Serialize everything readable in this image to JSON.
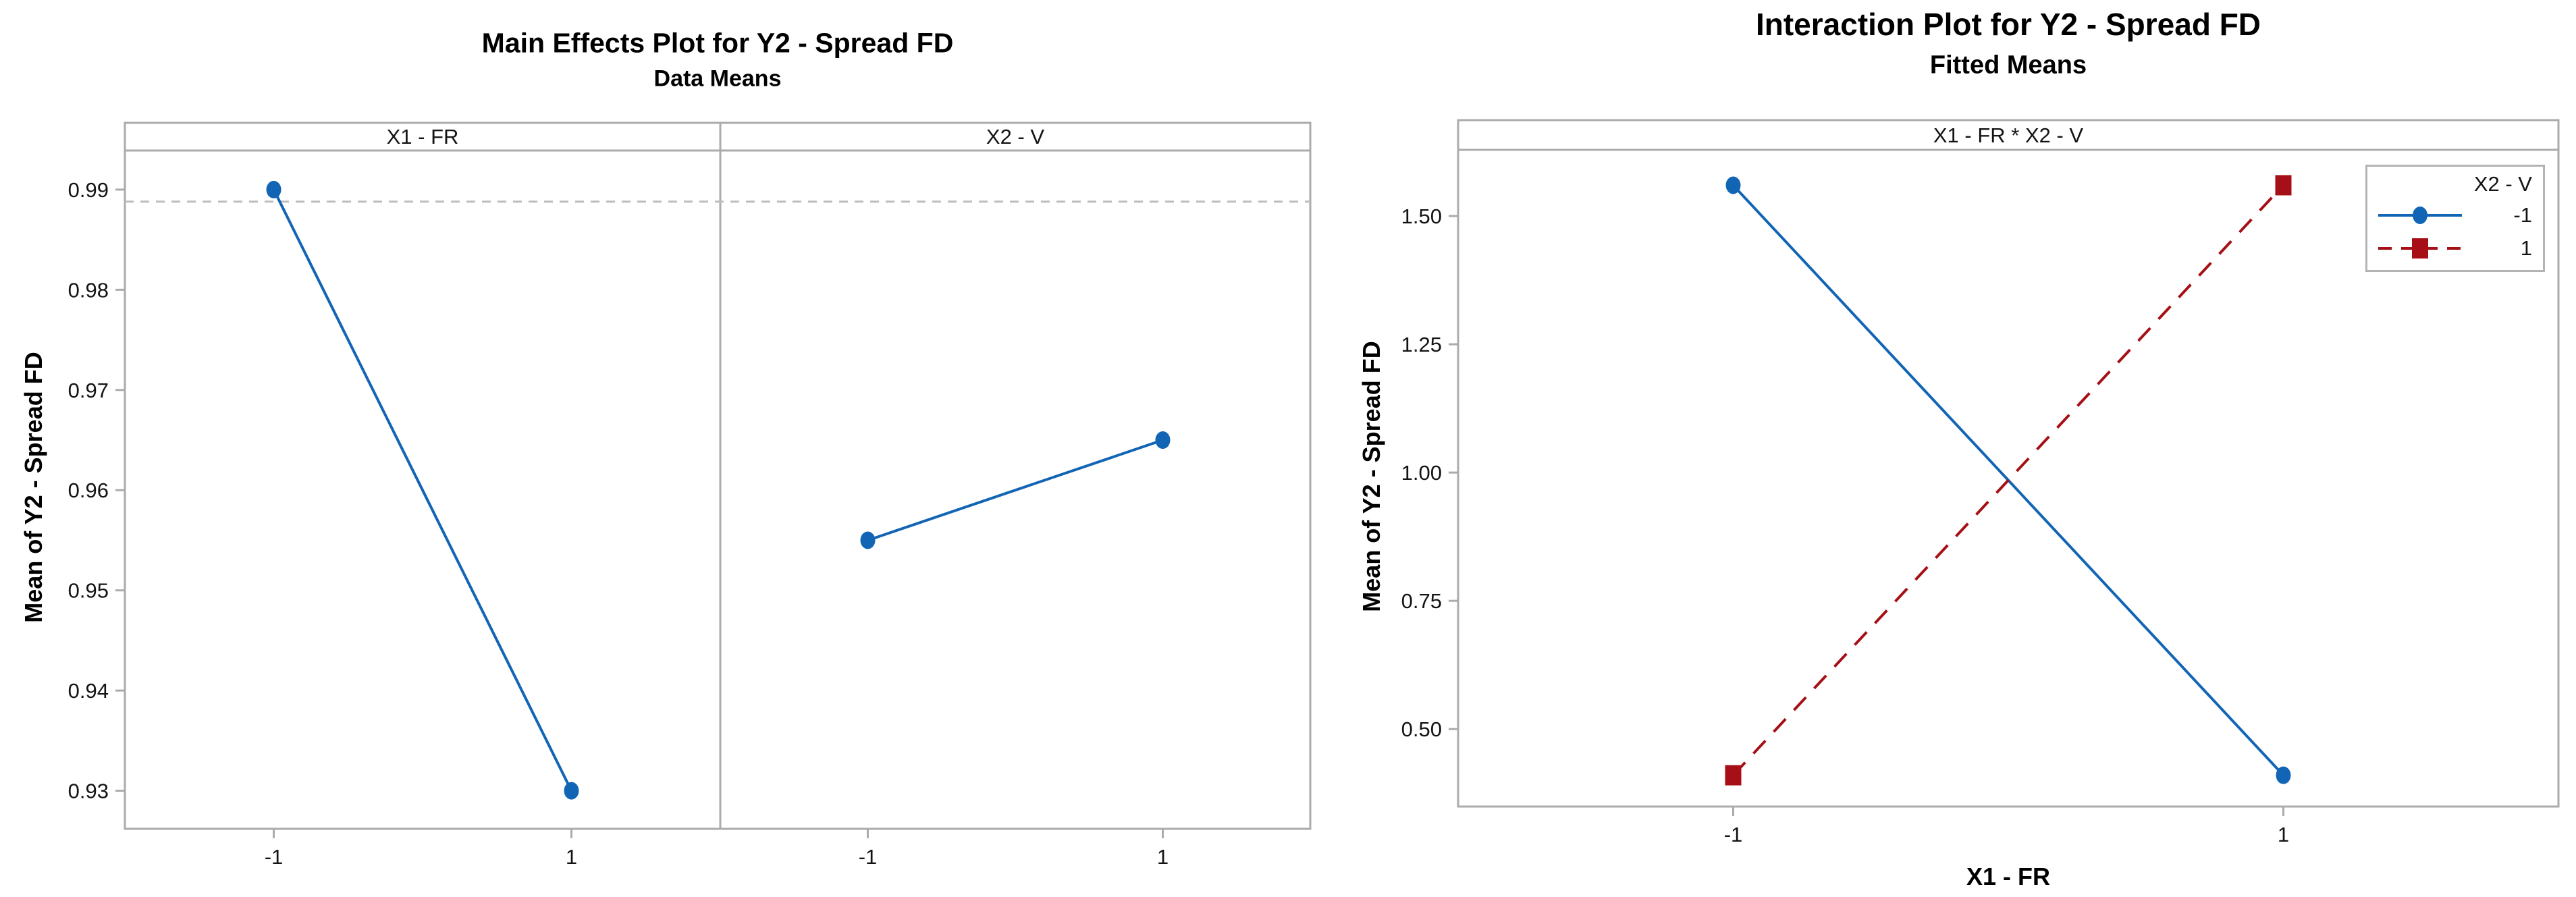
{
  "page": {
    "background": "#ffffff"
  },
  "colors": {
    "series_blue": "#1265b5",
    "series_red": "#a50f15",
    "frame_gray": "#ababab",
    "reference_gray": "#bdbdbd",
    "text_dark": "#141414"
  },
  "chart_data": [
    {
      "type": "line",
      "title": "Main Effects Plot for Y2 - Spread FD",
      "subtitle": "Data Means",
      "ylabel": "Mean of Y2 - Spread FD",
      "panels": [
        {
          "label": "X1 - FR",
          "x": [
            -1,
            1
          ],
          "values": [
            0.99,
            0.93
          ]
        },
        {
          "label": "X2 - V",
          "x": [
            -1,
            1
          ],
          "values": [
            0.955,
            0.965
          ]
        }
      ],
      "xticklabels": [
        "-1",
        "1"
      ],
      "yticks": [
        0.99,
        0.98,
        0.97,
        0.96,
        0.95,
        0.94,
        0.93
      ],
      "ylim": [
        0.9262,
        0.9939
      ],
      "xlim": [
        -2,
        2
      ],
      "reference_line": 0.9888,
      "grid": false,
      "series_color": "#1265b5",
      "marker": "circle"
    },
    {
      "type": "line",
      "title": "Interaction Plot for Y2 - Spread FD",
      "subtitle": "Fitted Means",
      "panel_label": "X1 - FR * X2 - V",
      "ylabel": "Mean of Y2 - Spread FD",
      "xlabel": "X1 - FR",
      "x": [
        -1,
        1
      ],
      "xticklabels": [
        "-1",
        "1"
      ],
      "series": [
        {
          "name": "-1",
          "values": [
            1.56,
            0.41
          ],
          "color": "#1265b5",
          "dash": "solid",
          "marker": "circle"
        },
        {
          "name": "1",
          "values": [
            0.41,
            1.56
          ],
          "color": "#a50f15",
          "dash": "dashed",
          "marker": "square"
        }
      ],
      "yticks": [
        1.5,
        1.25,
        1.0,
        0.75,
        0.5
      ],
      "ylim": [
        0.349,
        1.629
      ],
      "xlim": [
        -2,
        2
      ],
      "legend": {
        "title": "X2 - V",
        "position": "top-right"
      },
      "grid": false
    }
  ]
}
